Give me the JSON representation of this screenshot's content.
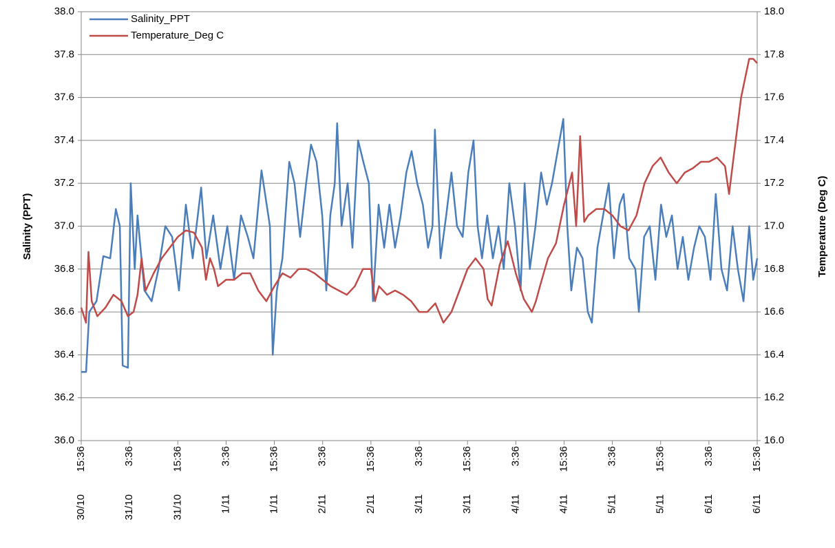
{
  "chart_data": {
    "type": "line",
    "y_label": "Salinity (PPT)",
    "y2_label": "Temperature (Deg C)",
    "xlim": [
      0,
      168
    ],
    "xticks": [
      {
        "value": 0,
        "label": "15:36",
        "date": "30/10"
      },
      {
        "value": 12,
        "label": "3:36",
        "date": "31/10"
      },
      {
        "value": 24,
        "label": "15:36",
        "date": "31/10"
      },
      {
        "value": 36,
        "label": "3:36",
        "date": "1/11"
      },
      {
        "value": 48,
        "label": "15:36",
        "date": "1/11"
      },
      {
        "value": 60,
        "label": "3:36",
        "date": "2/11"
      },
      {
        "value": 72,
        "label": "15:36",
        "date": "2/11"
      },
      {
        "value": 84,
        "label": "3:36",
        "date": "3/11"
      },
      {
        "value": 96,
        "label": "15:36",
        "date": "3/11"
      },
      {
        "value": 108,
        "label": "3:36",
        "date": "4/11"
      },
      {
        "value": 120,
        "label": "15:36",
        "date": "4/11"
      },
      {
        "value": 132,
        "label": "3:36",
        "date": "5/11"
      },
      {
        "value": 144,
        "label": "15:36",
        "date": "5/11"
      },
      {
        "value": 156,
        "label": "3:36",
        "date": "6/11"
      },
      {
        "value": 168,
        "label": "15:36",
        "date": "6/11"
      }
    ],
    "ylim": [
      36.0,
      38.0
    ],
    "yticks": [
      {
        "value": 36,
        "label": "36.0"
      },
      36.2,
      36.4,
      36.6,
      36.8,
      {
        "value": 37,
        "label": "37.0"
      },
      37.2,
      37.4,
      37.6,
      37.8,
      {
        "value": 38,
        "label": "38.0"
      }
    ],
    "y2lim": [
      16.0,
      18.0
    ],
    "y2ticks": [
      {
        "value": 16,
        "label": "16.0"
      },
      16.2,
      16.4,
      16.6,
      16.8,
      {
        "value": 17,
        "label": "17.0"
      },
      17.2,
      17.4,
      17.6,
      17.8,
      {
        "value": 18,
        "label": "18.0"
      }
    ],
    "grid": true,
    "legend": "top-left",
    "series": [
      {
        "name": "Salinity_PPT",
        "color": "#4a7ebb",
        "x": [
          0,
          1.2,
          2,
          3.8,
          5.5,
          7.2,
          8.6,
          9.6,
          10.3,
          11.6,
          12.3,
          13.3,
          14,
          15.7,
          17.5,
          19.2,
          20.9,
          22.6,
          24.3,
          26,
          27.7,
          29.8,
          31.1,
          32.8,
          34.6,
          36.3,
          38,
          39.7,
          41.4,
          42.8,
          44.8,
          46.9,
          47.6,
          48.6,
          50,
          51.7,
          53,
          54.4,
          55.9,
          57.1,
          58.5,
          59.9,
          60.9,
          61.9,
          63,
          63.6,
          64.7,
          66.2,
          67.4,
          68.8,
          70.1,
          71.5,
          72.5,
          73.9,
          75.3,
          76.6,
          78,
          79.4,
          80.8,
          82.1,
          83.5,
          84.9,
          86.2,
          87.3,
          87.9,
          89.3,
          90.7,
          92,
          93.4,
          94.8,
          96.2,
          97.5,
          98.5,
          99.6,
          100.9,
          102.3,
          103.7,
          105,
          106.4,
          107.8,
          109.2,
          110.2,
          111.5,
          112.9,
          114.3,
          115.7,
          117,
          118.4,
          119.8,
          120.8,
          121.8,
          123.2,
          124.6,
          125.9,
          126.9,
          128.3,
          129.7,
          131.1,
          132.4,
          133.8,
          134.8,
          136.2,
          137.7,
          138.6,
          139.9,
          141.3,
          142.7,
          144.1,
          145.4,
          146.8,
          148.2,
          149.5,
          150.9,
          152.3,
          153.6,
          155,
          156.4,
          157.7,
          159.1,
          160.5,
          161.9,
          163.2,
          164.6,
          166,
          167,
          168
        ],
        "values": [
          36.32,
          36.32,
          36.6,
          36.65,
          36.86,
          36.85,
          37.08,
          37.0,
          36.35,
          36.34,
          37.2,
          36.8,
          37.05,
          36.7,
          36.65,
          36.8,
          37.0,
          36.95,
          36.7,
          37.1,
          36.85,
          37.18,
          36.85,
          37.05,
          36.8,
          37.0,
          36.75,
          37.05,
          36.95,
          36.85,
          37.26,
          37.0,
          36.4,
          36.7,
          36.85,
          37.3,
          37.2,
          36.95,
          37.2,
          37.38,
          37.3,
          37.05,
          36.7,
          37.05,
          37.2,
          37.48,
          37.0,
          37.2,
          36.9,
          37.4,
          37.3,
          37.2,
          36.65,
          37.1,
          36.9,
          37.1,
          36.9,
          37.05,
          37.25,
          37.35,
          37.2,
          37.1,
          36.9,
          37.0,
          37.45,
          36.85,
          37.05,
          37.25,
          37.0,
          36.95,
          37.25,
          37.4,
          37.0,
          36.85,
          37.05,
          36.85,
          37.0,
          36.8,
          37.2,
          37.0,
          36.7,
          37.2,
          36.8,
          37.0,
          37.25,
          37.1,
          37.2,
          37.35,
          37.5,
          37.0,
          36.7,
          36.9,
          36.85,
          36.6,
          36.55,
          36.9,
          37.05,
          37.2,
          36.85,
          37.1,
          37.15,
          36.85,
          36.8,
          36.6,
          36.95,
          37.0,
          36.75,
          37.1,
          36.95,
          37.05,
          36.8,
          36.95,
          36.75,
          36.9,
          37.0,
          36.95,
          36.75,
          37.15,
          36.8,
          36.7,
          37.0,
          36.8,
          36.65,
          37.0,
          36.75,
          36.85
        ]
      },
      {
        "name": "Temperature_Deg C",
        "color": "#be4b48",
        "axis": "y2",
        "x": [
          0,
          1.2,
          1.8,
          2.6,
          4,
          6,
          8,
          10,
          11.6,
          13,
          14,
          15,
          16,
          18,
          20,
          22,
          24,
          26,
          28,
          30,
          31,
          32,
          33,
          34,
          36,
          38,
          40,
          42,
          44,
          46,
          48,
          50,
          52,
          54,
          56,
          58,
          60,
          62,
          64,
          66,
          68,
          70,
          72,
          73,
          74,
          76,
          78,
          80,
          82,
          84,
          86,
          88,
          90,
          92,
          94,
          96,
          98,
          100,
          101,
          102,
          104,
          106,
          108,
          110,
          112,
          113,
          114,
          116,
          118,
          120,
          122,
          123,
          124,
          125,
          126,
          128,
          130,
          132,
          134,
          136,
          138,
          140,
          142,
          144,
          146,
          148,
          150,
          152,
          154,
          156,
          158,
          160,
          161,
          162,
          164,
          166,
          167,
          168
        ],
        "values": [
          16.62,
          16.55,
          16.88,
          16.65,
          16.58,
          16.62,
          16.68,
          16.65,
          16.58,
          16.6,
          16.68,
          16.85,
          16.7,
          16.78,
          16.85,
          16.9,
          16.95,
          16.98,
          16.97,
          16.9,
          16.75,
          16.85,
          16.8,
          16.72,
          16.75,
          16.75,
          16.78,
          16.78,
          16.7,
          16.65,
          16.72,
          16.78,
          16.76,
          16.8,
          16.8,
          16.78,
          16.75,
          16.72,
          16.7,
          16.68,
          16.72,
          16.8,
          16.8,
          16.65,
          16.72,
          16.68,
          16.7,
          16.68,
          16.65,
          16.6,
          16.6,
          16.64,
          16.55,
          16.6,
          16.7,
          16.8,
          16.85,
          16.8,
          16.66,
          16.63,
          16.82,
          16.93,
          16.78,
          16.66,
          16.6,
          16.65,
          16.72,
          16.85,
          16.92,
          17.1,
          17.25,
          17.0,
          17.42,
          17.02,
          17.05,
          17.08,
          17.08,
          17.05,
          17.0,
          16.98,
          17.05,
          17.2,
          17.28,
          17.32,
          17.25,
          17.2,
          17.25,
          17.27,
          17.3,
          17.3,
          17.32,
          17.28,
          17.15,
          17.3,
          17.6,
          17.78,
          17.78,
          17.76
        ]
      }
    ]
  }
}
